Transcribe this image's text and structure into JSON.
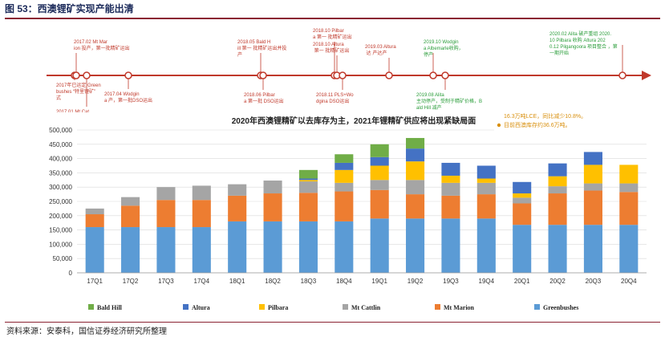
{
  "figure_title": "图 53：西澳锂矿实现产能出清",
  "source": "资料来源：安泰科，国信证券经济研究所整理",
  "colors": {
    "accent_red": "#c0392b",
    "green_text": "#2a9d3a",
    "orange_text": "#d9900f"
  },
  "timeline": {
    "events": [
      {
        "text": "2017年已运定 Greenbushes “特里锂矿” 式",
        "color": "#c0392b"
      },
      {
        "text": "2017.01 Mt Cattlin 第一批 精矿运出",
        "color": "#c0392b"
      },
      {
        "text": "2017.02 Mt Marion 投产，第一批精矿运出",
        "color": "#c0392b"
      },
      {
        "text": "2017.04 Wodgina 产，第一批DSO运出",
        "color": "#c0392b"
      },
      {
        "text": "2018.05 Bald Hill 第一 批精矿运出并投产",
        "color": "#c0392b"
      },
      {
        "text": "2018.06 Pilbara 第一批 DSO运出",
        "color": "#c0392b"
      },
      {
        "text": "2018.10 Pilbara 第一 批精矿运出",
        "color": "#c0392b"
      },
      {
        "text": "2018.10 Altura 第一 批精矿运出",
        "color": "#c0392b"
      },
      {
        "text": "2018.11 PLS+Wodgina DSO运出",
        "color": "#c0392b"
      },
      {
        "text": "2019.03 Altura 达 产达产",
        "color": "#c0392b"
      },
      {
        "text": "2019.10 Wodgina Albemarle收购，停产",
        "color": "#2a9d3a"
      },
      {
        "text": "2019.08 Alita 主动停产，受制于精矿价格，Bald Hill 减产",
        "color": "#2a9d3a"
      },
      {
        "text": "2020.02 Alita 破产重组 2020.10 Pilbara 收购 Altura 2020.12 Pilgangoora 项目整合 ，第一期开始",
        "color": "#2a9d3a"
      }
    ]
  },
  "annotation": {
    "lines": [
      "2020年西澳锂精矿产量约151.3万吨，较上年减少16.3万吨LCE，同比减少10.8%。",
      "目前西澳库存约36.6万吨。"
    ]
  },
  "chart_data": {
    "type": "bar",
    "stacked": true,
    "title": "2020年西澳锂精矿以去库存为主，2021年锂精矿供应将出现紧缺局面",
    "categories": [
      "17Q1",
      "17Q2",
      "17Q3",
      "17Q4",
      "18Q1",
      "18Q2",
      "18Q3",
      "18Q4",
      "19Q1",
      "19Q2",
      "19Q3",
      "19Q4",
      "20Q1",
      "20Q2",
      "20Q3",
      "20Q4"
    ],
    "ylim": [
      0,
      500000
    ],
    "yticks": [
      0,
      50000,
      100000,
      150000,
      200000,
      250000,
      300000,
      350000,
      400000,
      450000,
      500000
    ],
    "ytick_labels": [
      "0",
      "50,000",
      "100,000",
      "150,000",
      "200,000",
      "250,000",
      "300,000",
      "350,000",
      "400,000",
      "450,000",
      "500,000"
    ],
    "grid": true,
    "legend_position": "bottom",
    "series": [
      {
        "name": "Greenbushes",
        "color": "#5b9bd5",
        "values": [
          160000,
          160000,
          160000,
          160000,
          180000,
          180000,
          180000,
          180000,
          190000,
          190000,
          190000,
          190000,
          168000,
          168000,
          168000,
          168000
        ]
      },
      {
        "name": "Mt Marion",
        "color": "#ed7d31",
        "values": [
          45000,
          75000,
          95000,
          95000,
          90000,
          98000,
          100000,
          105000,
          100000,
          85000,
          80000,
          85000,
          75000,
          110000,
          120000,
          115000
        ]
      },
      {
        "name": "Mt Cattlin",
        "color": "#a5a5a5",
        "values": [
          20000,
          30000,
          45000,
          50000,
          40000,
          45000,
          40000,
          30000,
          35000,
          50000,
          45000,
          40000,
          20000,
          25000,
          25000,
          30000
        ]
      },
      {
        "name": "Pilbara",
        "color": "#ffc000",
        "values": [
          0,
          0,
          0,
          0,
          0,
          0,
          5000,
          45000,
          50000,
          65000,
          25000,
          15000,
          15000,
          35000,
          65000,
          65000
        ]
      },
      {
        "name": "Altura",
        "color": "#4472c4",
        "values": [
          0,
          0,
          0,
          0,
          0,
          0,
          5000,
          25000,
          30000,
          45000,
          45000,
          45000,
          40000,
          45000,
          45000,
          0
        ]
      },
      {
        "name": "Bald Hill",
        "color": "#70ad47",
        "values": [
          0,
          0,
          0,
          0,
          0,
          0,
          30000,
          30000,
          45000,
          37000,
          0,
          0,
          0,
          0,
          0,
          0
        ]
      }
    ],
    "legend_order": [
      "Bald Hill",
      "Altura",
      "Pilbara",
      "Mt Cattlin",
      "Mt Marion",
      "Greenbushes"
    ]
  }
}
